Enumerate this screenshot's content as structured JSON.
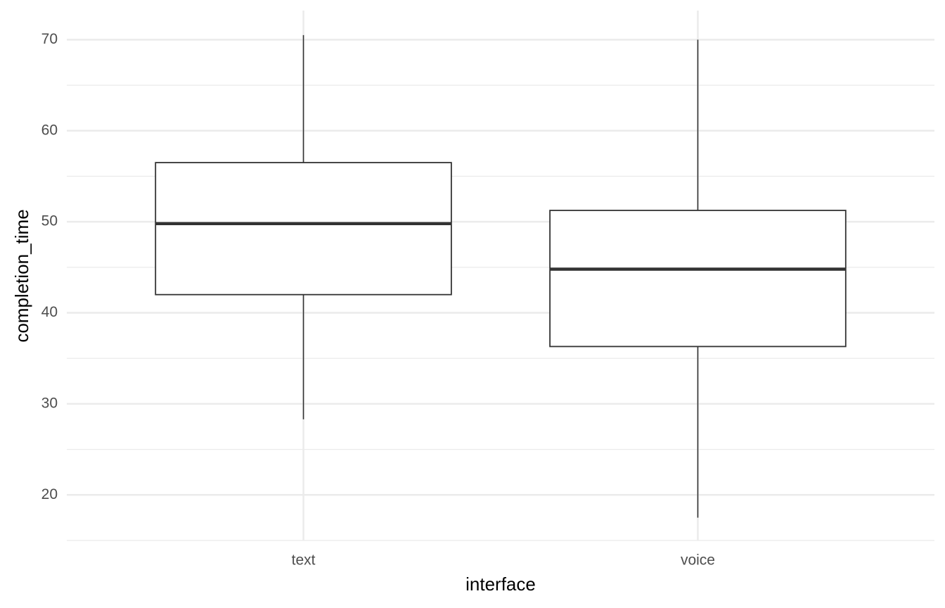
{
  "chart_data": {
    "type": "box",
    "x_label": "interface",
    "y_label": "completion_time",
    "categories": [
      "text",
      "voice"
    ],
    "min": [
      28.3,
      17.5
    ],
    "q1": [
      42.0,
      36.3
    ],
    "median": [
      49.8,
      44.8
    ],
    "q3": [
      56.5,
      51.25
    ],
    "max": [
      70.5,
      70.0
    ],
    "color": "#333333",
    "fill": "#ffffff",
    "ylim": [
      15,
      73.2
    ],
    "yticks": [
      20,
      30,
      40,
      50,
      60,
      70
    ],
    "yminorticks": [
      15,
      25,
      35,
      45,
      55,
      65
    ],
    "grid": true
  }
}
